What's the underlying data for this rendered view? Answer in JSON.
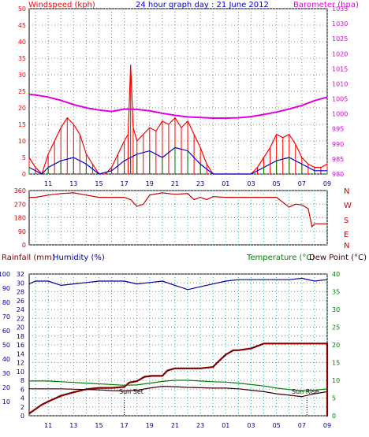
{
  "header": {
    "windspeed_label": "Windspeed (kph)",
    "title": "24 hour graph day : 21 June 2012",
    "barometer_label": "Barometer (hpa)"
  },
  "lower_header": {
    "rainfall_label": "Rainfall (mm)",
    "humidity_label": "Humidity (%)",
    "temperature_label": "Temperature (°C)",
    "dewpoint_label": "Dew Point (°C)"
  },
  "annotations": {
    "sunset": "Sun Set",
    "sunrise": "Sun Rise"
  },
  "colors": {
    "windspeed": "#ff0000",
    "gust_avg": "#0000cc",
    "calm": "#008000",
    "barometer": "#e000e0",
    "direction": "#cc0000",
    "rainfall": "#800000",
    "humidity": "#0000a0",
    "temperature": "#008000",
    "dewpoint": "#3c0000",
    "grid": "#40a0a0"
  },
  "chart_data": [
    {
      "type": "line",
      "title": "24 hour graph day : 21 June 2012",
      "ylabel": "Windspeed (kph)",
      "y2label": "Barometer (hpa)",
      "ylim": [
        0,
        50
      ],
      "y2lim": [
        980,
        1035
      ],
      "y_ticks": [
        "0",
        "5",
        "10",
        "15",
        "20",
        "25",
        "30",
        "35",
        "40",
        "45",
        "50"
      ],
      "y2_ticks": [
        "980",
        "985",
        "990",
        "995",
        "1000",
        "1005",
        "1010",
        "1015",
        "1020",
        "1025",
        "1030",
        "1035"
      ],
      "x_ticks": [
        "11",
        "13",
        "15",
        "17",
        "19",
        "21",
        "23",
        "01",
        "03",
        "05",
        "07",
        "09"
      ],
      "grid": true,
      "series": [
        {
          "name": "Windspeed (kph)",
          "x": [
            9.5,
            10,
            10.5,
            11,
            11.5,
            12,
            12.5,
            13,
            13.5,
            14,
            14.5,
            15,
            15.5,
            16,
            16.5,
            17,
            17.3,
            17.5,
            17.7,
            18,
            18.5,
            19,
            19.5,
            20,
            20.5,
            21,
            21.5,
            22,
            22.5,
            23,
            23.5,
            24,
            24.5,
            25,
            25.5,
            26,
            26.5,
            27,
            27.5,
            28,
            28.5,
            29,
            29.5,
            30,
            30.5,
            31,
            31.5,
            32,
            32.5,
            33
          ],
          "values": [
            5,
            2,
            0,
            6,
            10,
            14,
            17,
            15,
            12,
            6,
            3,
            0,
            0,
            2,
            6,
            10,
            12,
            33,
            14,
            10,
            12,
            14,
            13,
            16,
            15,
            17,
            14,
            16,
            12,
            8,
            3,
            0,
            0,
            0,
            0,
            0,
            0,
            0,
            2,
            5,
            8,
            12,
            11,
            12,
            9,
            5,
            3,
            2,
            2,
            3
          ]
        },
        {
          "name": "Gust average",
          "x": [
            9.5,
            10.5,
            11,
            12,
            13,
            14,
            15,
            16,
            17,
            17.5,
            18,
            19,
            20,
            21,
            22,
            23,
            24,
            25,
            27,
            28,
            29,
            30,
            31,
            32,
            33
          ],
          "values": [
            2,
            0,
            2,
            4,
            5,
            3,
            0,
            1,
            4,
            5,
            6,
            7,
            5,
            8,
            7,
            3,
            0,
            0,
            0,
            2,
            4,
            5,
            3,
            1,
            1
          ]
        },
        {
          "name": "Barometer (hpa)",
          "x": [
            9.5,
            10,
            11,
            12,
            13,
            14,
            15,
            16,
            17,
            18,
            19,
            20,
            21,
            22,
            23,
            24,
            25,
            26,
            27,
            28,
            29,
            30,
            31,
            32,
            33
          ],
          "values": [
            1006.5,
            1006.3,
            1005.6,
            1004.5,
            1003.1,
            1002.0,
            1001.3,
            1000.8,
            1001.6,
            1001.5,
            1001.0,
            1000.2,
            999.5,
            999.0,
            998.8,
            998.6,
            998.6,
            998.7,
            999.1,
            999.8,
            1000.6,
            1001.6,
            1002.8,
            1004.4,
            1005.6
          ]
        }
      ]
    },
    {
      "type": "line",
      "ylabel": "Wind direction",
      "ylim": [
        0,
        360
      ],
      "y_ticks": [
        "0",
        "90",
        "180",
        "270",
        "360"
      ],
      "y2_ticks": [
        "N",
        "W",
        "S",
        "E",
        "N"
      ],
      "x_ticks": [
        "11",
        "13",
        "15",
        "17",
        "19",
        "21",
        "23",
        "01",
        "03",
        "05",
        "07",
        "09"
      ],
      "grid": true,
      "series": [
        {
          "name": "Wind direction",
          "x": [
            9.5,
            10,
            11,
            12,
            13,
            14,
            15,
            16,
            17,
            17.5,
            18,
            18.5,
            19,
            20,
            21,
            22,
            22.5,
            23,
            23.5,
            24,
            25,
            26,
            27,
            28,
            29,
            30,
            30.5,
            31,
            31.5,
            31.8,
            32,
            33
          ],
          "values": [
            315,
            315,
            330,
            340,
            345,
            330,
            315,
            315,
            315,
            300,
            255,
            270,
            330,
            345,
            335,
            340,
            300,
            315,
            300,
            320,
            315,
            315,
            315,
            315,
            315,
            250,
            270,
            265,
            240,
            120,
            140,
            140
          ]
        }
      ]
    },
    {
      "type": "line",
      "ylabel": "Rainfall (mm)",
      "y2label": "Temperature (°C)",
      "ylim": [
        0,
        32
      ],
      "y2lim": [
        0,
        40
      ],
      "y_ticks": [
        "0",
        "2",
        "4",
        "6",
        "8",
        "10",
        "12",
        "14",
        "16",
        "18",
        "20",
        "22",
        "24",
        "26",
        "28",
        "30",
        "32"
      ],
      "y3_ticks": [
        "10",
        "20",
        "30",
        "40",
        "50",
        "60",
        "70",
        "80",
        "90",
        "100"
      ],
      "y2_ticks": [
        "0",
        "5",
        "10",
        "15",
        "20",
        "25",
        "30",
        "35",
        "40"
      ],
      "x_ticks": [
        "11",
        "13",
        "15",
        "17",
        "19",
        "21",
        "23",
        "01",
        "03",
        "05",
        "07",
        "09"
      ],
      "grid": true,
      "series": [
        {
          "name": "Rainfall (mm)",
          "x": [
            9.5,
            10,
            10.5,
            11,
            12,
            13,
            14,
            15,
            16,
            17,
            17.4,
            18,
            18.6,
            19.2,
            20,
            20.4,
            21,
            22,
            23,
            24,
            24.4,
            25,
            25.6,
            26,
            27,
            28,
            29,
            30,
            31,
            32,
            33,
            33,
            33.05
          ],
          "values": [
            0.5,
            1.5,
            2.5,
            3.2,
            4.5,
            5.3,
            6,
            6.3,
            6.3,
            6.5,
            7.5,
            7.8,
            8.8,
            9,
            9,
            10.2,
            10.7,
            10.7,
            10.7,
            11,
            12.2,
            13.8,
            14.8,
            14.8,
            15.2,
            16.3,
            16.3,
            16.3,
            16.3,
            16.3,
            16.3,
            0,
            0
          ]
        },
        {
          "name": "Humidity (%)",
          "x": [
            9.5,
            10,
            11,
            12,
            13,
            14,
            15,
            16,
            17,
            18,
            19,
            20,
            21,
            22,
            23,
            24,
            25,
            26,
            27,
            28,
            29,
            30,
            31,
            32,
            33
          ],
          "values": [
            93,
            95,
            95,
            92,
            93,
            94,
            95,
            95,
            95,
            93,
            94,
            95,
            92,
            89,
            91,
            93,
            95,
            96,
            96,
            96,
            96,
            96,
            97,
            95,
            96
          ]
        },
        {
          "name": "Temperature (°C)",
          "x": [
            9.5,
            10,
            11,
            12,
            13,
            14,
            15,
            16,
            17,
            18,
            19,
            20,
            21,
            22,
            23,
            24,
            25,
            26,
            27,
            28,
            29,
            30,
            31,
            32,
            33
          ],
          "values": [
            9.8,
            9.8,
            9.8,
            9.6,
            9.4,
            9.2,
            9.0,
            8.8,
            8.6,
            8.7,
            9.2,
            9.7,
            10.0,
            10.0,
            9.8,
            9.6,
            9.5,
            9.2,
            8.8,
            8.4,
            7.8,
            7.4,
            7.0,
            7.2,
            7.6
          ]
        },
        {
          "name": "Dew Point (°C)",
          "x": [
            9.5,
            10,
            11,
            12,
            13,
            14,
            15,
            16,
            17,
            18,
            19,
            20,
            21,
            22,
            23,
            24,
            25,
            26,
            27,
            28,
            29,
            30,
            31,
            32,
            33
          ],
          "values": [
            7.6,
            7.6,
            7.6,
            7.6,
            7.5,
            7.4,
            7.3,
            7.1,
            7.0,
            7.2,
            7.8,
            8.3,
            8.2,
            8.0,
            7.9,
            7.8,
            7.8,
            7.6,
            7.2,
            6.8,
            6.2,
            5.8,
            5.4,
            6.2,
            6.8
          ]
        }
      ]
    }
  ]
}
